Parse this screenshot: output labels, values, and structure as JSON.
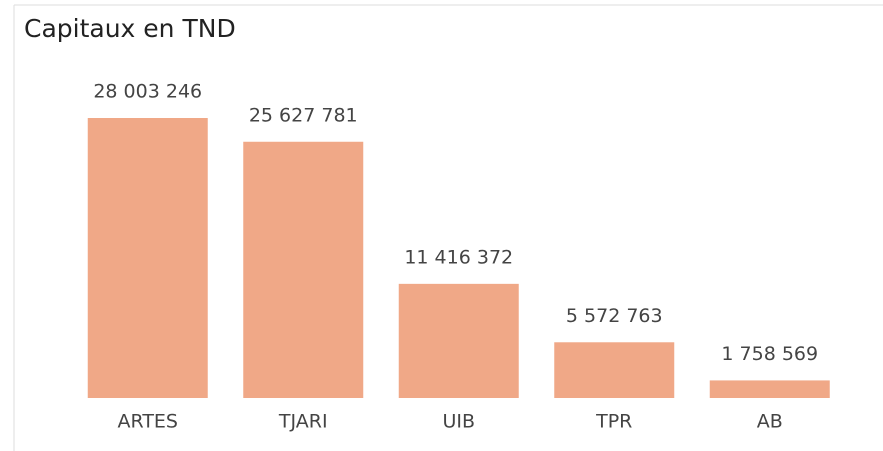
{
  "chart_data": {
    "type": "bar",
    "title": "Capitaux en TND",
    "categories": [
      "ARTES",
      "TJARI",
      "UIB",
      "TPR",
      "AB"
    ],
    "values": [
      28003246,
      25627781,
      11416372,
      5572763,
      1758569
    ],
    "value_labels": [
      "28 003 246",
      "25 627 781",
      "11 416 372",
      "5 572 763",
      "1 758 569"
    ],
    "color": "#f0a887"
  }
}
